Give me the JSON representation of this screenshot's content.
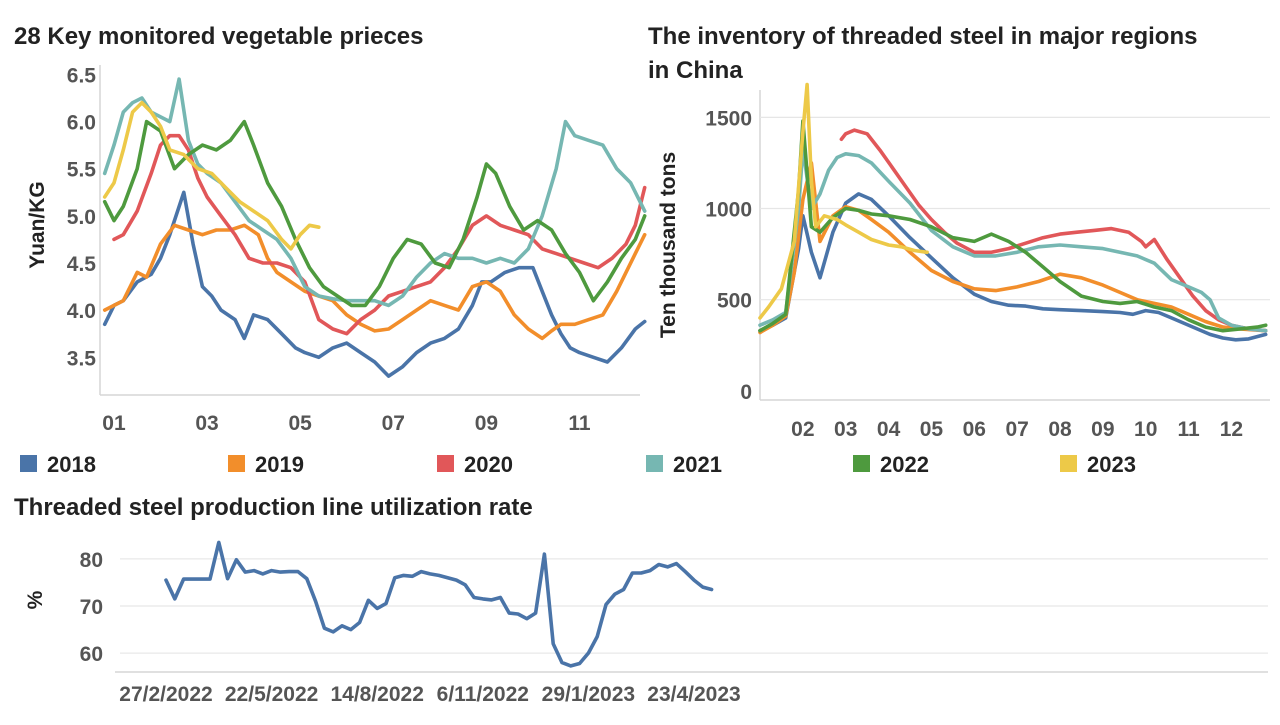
{
  "legend": [
    {
      "name": "2018",
      "color": "#4a74a8"
    },
    {
      "name": "2019",
      "color": "#f28e2b"
    },
    {
      "name": "2020",
      "color": "#e15759"
    },
    {
      "name": "2021",
      "color": "#76b7b2"
    },
    {
      "name": "2022",
      "color": "#4e9a3e"
    },
    {
      "name": "2023",
      "color": "#edc948"
    }
  ],
  "chart_data": [
    {
      "type": "line",
      "title": "28 Key monitored vegetable prieces",
      "ylabel": "Yuan/KG",
      "xlabel": "",
      "ylim": [
        3.1,
        6.6
      ],
      "xlim": [
        0.7,
        12.3
      ],
      "xtick_values": [
        1,
        3,
        5,
        7,
        9,
        11
      ],
      "xtick_labels": [
        "01",
        "03",
        "05",
        "07",
        "09",
        "11"
      ],
      "ytick_values": [
        3.5,
        4.0,
        4.5,
        5.0,
        5.5,
        6.0,
        6.5
      ],
      "ytick_labels": [
        "3.5",
        "4.0",
        "4.5",
        "5.0",
        "5.5",
        "6.0",
        "6.5"
      ],
      "grid": false,
      "series": [
        {
          "name": "2018",
          "x": [
            0.8,
            1.0,
            1.2,
            1.5,
            1.8,
            2.0,
            2.2,
            2.5,
            2.7,
            2.9,
            3.1,
            3.3,
            3.6,
            3.8,
            4.0,
            4.3,
            4.6,
            4.9,
            5.1,
            5.4,
            5.7,
            6.0,
            6.3,
            6.6,
            6.9,
            7.2,
            7.5,
            7.8,
            8.1,
            8.4,
            8.7,
            8.9,
            9.1,
            9.4,
            9.7,
            10.0,
            10.2,
            10.4,
            10.6,
            10.8,
            11.0,
            11.3,
            11.6,
            11.9,
            12.2,
            12.4
          ],
          "y": [
            3.85,
            4.05,
            4.1,
            4.3,
            4.38,
            4.55,
            4.8,
            5.25,
            4.7,
            4.25,
            4.15,
            4.0,
            3.9,
            3.7,
            3.95,
            3.9,
            3.75,
            3.6,
            3.55,
            3.5,
            3.6,
            3.65,
            3.55,
            3.45,
            3.3,
            3.4,
            3.55,
            3.65,
            3.7,
            3.8,
            4.05,
            4.3,
            4.3,
            4.4,
            4.45,
            4.45,
            4.2,
            3.95,
            3.75,
            3.6,
            3.55,
            3.5,
            3.45,
            3.6,
            3.8,
            3.88
          ]
        },
        {
          "name": "2019",
          "x": [
            0.8,
            1.0,
            1.2,
            1.5,
            1.7,
            2.0,
            2.3,
            2.6,
            2.9,
            3.2,
            3.5,
            3.8,
            4.1,
            4.3,
            4.5,
            4.8,
            5.1,
            5.4,
            5.7,
            6.0,
            6.3,
            6.6,
            6.9,
            7.2,
            7.5,
            7.8,
            8.1,
            8.4,
            8.7,
            9.0,
            9.3,
            9.6,
            9.9,
            10.2,
            10.4,
            10.6,
            10.9,
            11.2,
            11.5,
            11.8,
            12.0,
            12.2,
            12.4
          ],
          "y": [
            4.0,
            4.05,
            4.1,
            4.4,
            4.35,
            4.7,
            4.9,
            4.85,
            4.8,
            4.85,
            4.85,
            4.9,
            4.8,
            4.55,
            4.4,
            4.3,
            4.2,
            4.15,
            4.1,
            3.95,
            3.85,
            3.78,
            3.8,
            3.9,
            4.0,
            4.1,
            4.05,
            4.0,
            4.25,
            4.3,
            4.2,
            3.95,
            3.8,
            3.7,
            3.78,
            3.85,
            3.85,
            3.9,
            3.95,
            4.2,
            4.4,
            4.6,
            4.8
          ]
        },
        {
          "name": "2020",
          "x": [
            1.0,
            1.2,
            1.5,
            1.8,
            2.0,
            2.2,
            2.4,
            2.6,
            2.8,
            3.0,
            3.3,
            3.6,
            3.9,
            4.2,
            4.5,
            4.8,
            5.1,
            5.4,
            5.7,
            6.0,
            6.3,
            6.6,
            6.9,
            7.2,
            7.5,
            7.8,
            8.1,
            8.4,
            8.7,
            9.0,
            9.3,
            9.6,
            9.9,
            10.2,
            10.5,
            10.8,
            11.1,
            11.4,
            11.7,
            12.0,
            12.2,
            12.4
          ],
          "y": [
            4.75,
            4.8,
            5.05,
            5.45,
            5.75,
            5.85,
            5.85,
            5.7,
            5.4,
            5.2,
            5.0,
            4.8,
            4.55,
            4.5,
            4.5,
            4.45,
            4.3,
            3.9,
            3.8,
            3.75,
            3.9,
            4.0,
            4.15,
            4.2,
            4.25,
            4.3,
            4.45,
            4.65,
            4.9,
            5.0,
            4.9,
            4.85,
            4.8,
            4.65,
            4.6,
            4.55,
            4.5,
            4.45,
            4.55,
            4.7,
            4.9,
            5.3
          ]
        },
        {
          "name": "2021",
          "x": [
            0.8,
            1.0,
            1.2,
            1.4,
            1.6,
            1.8,
            2.0,
            2.2,
            2.4,
            2.6,
            2.8,
            3.0,
            3.3,
            3.6,
            3.9,
            4.2,
            4.5,
            4.8,
            5.1,
            5.4,
            5.7,
            6.0,
            6.3,
            6.6,
            6.9,
            7.2,
            7.5,
            7.8,
            8.1,
            8.4,
            8.7,
            9.0,
            9.3,
            9.6,
            9.9,
            10.2,
            10.5,
            10.7,
            10.9,
            11.2,
            11.5,
            11.8,
            12.1,
            12.4
          ],
          "y": [
            5.45,
            5.75,
            6.1,
            6.2,
            6.25,
            6.1,
            6.05,
            6.0,
            6.45,
            5.8,
            5.55,
            5.45,
            5.35,
            5.15,
            4.95,
            4.85,
            4.75,
            4.55,
            4.25,
            4.15,
            4.12,
            4.1,
            4.1,
            4.1,
            4.05,
            4.15,
            4.35,
            4.5,
            4.6,
            4.55,
            4.55,
            4.5,
            4.55,
            4.5,
            4.65,
            5.0,
            5.5,
            6.0,
            5.85,
            5.8,
            5.75,
            5.5,
            5.35,
            5.05
          ]
        },
        {
          "name": "2022",
          "x": [
            0.8,
            1.0,
            1.2,
            1.5,
            1.7,
            2.0,
            2.3,
            2.6,
            2.9,
            3.2,
            3.5,
            3.8,
            4.0,
            4.3,
            4.6,
            4.9,
            5.2,
            5.5,
            5.8,
            6.1,
            6.4,
            6.7,
            7.0,
            7.3,
            7.6,
            7.9,
            8.2,
            8.5,
            8.8,
            9.0,
            9.2,
            9.5,
            9.8,
            10.1,
            10.4,
            10.7,
            11.0,
            11.3,
            11.6,
            11.9,
            12.2,
            12.4
          ],
          "y": [
            5.15,
            4.95,
            5.1,
            5.5,
            6.0,
            5.9,
            5.5,
            5.65,
            5.75,
            5.7,
            5.8,
            6.0,
            5.75,
            5.35,
            5.1,
            4.75,
            4.45,
            4.25,
            4.15,
            4.05,
            4.05,
            4.25,
            4.55,
            4.75,
            4.7,
            4.5,
            4.45,
            4.75,
            5.2,
            5.55,
            5.45,
            5.1,
            4.85,
            4.95,
            4.85,
            4.6,
            4.4,
            4.1,
            4.3,
            4.55,
            4.75,
            5.0
          ]
        },
        {
          "name": "2023",
          "x": [
            0.8,
            1.0,
            1.2,
            1.4,
            1.6,
            1.8,
            2.0,
            2.2,
            2.5,
            2.8,
            3.1,
            3.4,
            3.7,
            4.0,
            4.3,
            4.6,
            4.8,
            5.0,
            5.2,
            5.4
          ],
          "y": [
            5.2,
            5.35,
            5.7,
            6.1,
            6.2,
            6.1,
            5.95,
            5.7,
            5.65,
            5.5,
            5.45,
            5.3,
            5.15,
            5.05,
            4.95,
            4.75,
            4.65,
            4.8,
            4.9,
            4.88
          ]
        }
      ]
    },
    {
      "type": "line",
      "title": "The inventory of threaded steel in major regions in China",
      "ylabel": "Ten thousand tons",
      "xlabel": "",
      "ylim": [
        -50,
        1650
      ],
      "xlim": [
        1.0,
        12.9
      ],
      "xtick_values": [
        2,
        3,
        4,
        5,
        6,
        7,
        8,
        9,
        10,
        11,
        12
      ],
      "xtick_labels": [
        "02",
        "03",
        "04",
        "05",
        "06",
        "07",
        "08",
        "09",
        "10",
        "11",
        "12"
      ],
      "ytick_values": [
        0,
        500,
        1000,
        1500
      ],
      "ytick_labels": [
        "0",
        "500",
        "1000",
        "1500"
      ],
      "grid": true,
      "series": [
        {
          "name": "2018",
          "x": [
            1.0,
            1.3,
            1.6,
            1.9,
            2.0,
            2.2,
            2.4,
            2.7,
            3.0,
            3.3,
            3.6,
            4.0,
            4.5,
            5.0,
            5.5,
            6.0,
            6.4,
            6.8,
            7.2,
            7.6,
            8.0,
            8.5,
            9.0,
            9.4,
            9.7,
            10.0,
            10.3,
            10.6,
            10.9,
            11.2,
            11.5,
            11.8,
            12.1,
            12.4,
            12.8
          ],
          "y": [
            330,
            360,
            400,
            780,
            960,
            760,
            620,
            870,
            1030,
            1080,
            1050,
            960,
            840,
            730,
            620,
            530,
            490,
            470,
            465,
            450,
            445,
            440,
            435,
            430,
            420,
            440,
            430,
            400,
            370,
            340,
            310,
            290,
            280,
            285,
            310
          ]
        },
        {
          "name": "2019",
          "x": [
            1.0,
            1.3,
            1.6,
            1.8,
            2.0,
            2.2,
            2.4,
            2.7,
            3.0,
            3.3,
            3.6,
            4.0,
            4.5,
            5.0,
            5.5,
            6.0,
            6.5,
            7.0,
            7.5,
            8.0,
            8.5,
            9.0,
            9.4,
            9.8,
            10.2,
            10.6,
            11.0,
            11.4,
            11.8,
            12.2,
            12.8
          ],
          "y": [
            320,
            360,
            410,
            650,
            1050,
            1250,
            820,
            960,
            1010,
            990,
            940,
            870,
            760,
            660,
            600,
            560,
            550,
            570,
            600,
            640,
            620,
            580,
            540,
            500,
            480,
            460,
            420,
            380,
            350,
            340,
            330
          ]
        },
        {
          "name": "2020",
          "x": [
            2.9,
            3.0,
            3.2,
            3.5,
            3.8,
            4.1,
            4.4,
            4.7,
            5.0,
            5.3,
            5.6,
            6.0,
            6.4,
            6.8,
            7.2,
            7.6,
            8.0,
            8.4,
            8.8,
            9.2,
            9.6,
            9.9,
            10.0,
            10.2,
            10.5,
            10.8,
            11.1,
            11.4,
            11.7,
            12.0,
            12.4,
            12.8
          ],
          "y": [
            1380,
            1410,
            1430,
            1410,
            1320,
            1220,
            1120,
            1020,
            940,
            870,
            810,
            760,
            760,
            780,
            810,
            840,
            860,
            870,
            880,
            890,
            870,
            820,
            790,
            830,
            720,
            620,
            520,
            440,
            390,
            360,
            340,
            330
          ]
        },
        {
          "name": "2021",
          "x": [
            1.0,
            1.3,
            1.6,
            1.9,
            2.0,
            2.2,
            2.4,
            2.6,
            2.8,
            3.0,
            3.3,
            3.6,
            4.0,
            4.5,
            5.0,
            5.5,
            6.0,
            6.5,
            7.0,
            7.5,
            8.0,
            8.5,
            9.0,
            9.4,
            9.8,
            10.2,
            10.6,
            11.0,
            11.3,
            11.5,
            11.7,
            12.0,
            12.4,
            12.8
          ],
          "y": [
            360,
            390,
            430,
            1000,
            1330,
            1000,
            1080,
            1210,
            1280,
            1300,
            1290,
            1250,
            1150,
            1030,
            880,
            790,
            740,
            740,
            760,
            790,
            800,
            790,
            780,
            760,
            740,
            700,
            610,
            570,
            540,
            500,
            400,
            360,
            340,
            330
          ]
        },
        {
          "name": "2022",
          "x": [
            1.0,
            1.3,
            1.6,
            1.9,
            2.0,
            2.2,
            2.4,
            2.7,
            3.0,
            3.3,
            3.6,
            4.0,
            4.5,
            5.0,
            5.5,
            6.0,
            6.4,
            6.8,
            7.2,
            7.6,
            8.0,
            8.5,
            9.0,
            9.4,
            9.8,
            10.2,
            10.6,
            11.0,
            11.4,
            11.8,
            12.2,
            12.6,
            12.8
          ],
          "y": [
            330,
            370,
            420,
            1100,
            1480,
            900,
            870,
            950,
            1000,
            990,
            970,
            960,
            940,
            900,
            840,
            820,
            860,
            820,
            760,
            680,
            600,
            520,
            490,
            480,
            490,
            460,
            440,
            390,
            350,
            330,
            340,
            350,
            360
          ]
        },
        {
          "name": "2023",
          "x": [
            1.0,
            1.2,
            1.5,
            1.8,
            2.0,
            2.1,
            2.2,
            2.3,
            2.5,
            2.8,
            3.0,
            3.3,
            3.6,
            4.0,
            4.3,
            4.6,
            4.9
          ],
          "y": [
            400,
            460,
            560,
            820,
            1420,
            1680,
            1150,
            900,
            960,
            940,
            910,
            870,
            830,
            800,
            790,
            770,
            760
          ]
        }
      ]
    },
    {
      "type": "line",
      "title": "Threaded steel production line utilization rate",
      "ylabel": "%",
      "xlabel": "",
      "ylim": [
        56,
        84
      ],
      "ytick_values": [
        60,
        70,
        80
      ],
      "ytick_labels": [
        "60",
        "70",
        "80"
      ],
      "xtick_index": [
        0,
        12,
        24,
        36,
        48,
        60
      ],
      "x_labels": [
        "27/2/2022",
        "22/5/2022",
        "14/8/2022",
        "6/11/2022",
        "29/1/2023",
        "23/4/2023"
      ],
      "grid": true,
      "series": [
        {
          "name": "",
          "values": [
            75.5,
            71.5,
            75.7,
            75.7,
            75.7,
            75.7,
            83.5,
            75.8,
            79.8,
            77.2,
            77.5,
            76.8,
            77.5,
            77.2,
            77.3,
            77.3,
            75.8,
            71.0,
            65.3,
            64.5,
            65.8,
            65.0,
            66.5,
            71.2,
            69.5,
            70.5,
            76.0,
            76.5,
            76.3,
            77.3,
            76.8,
            76.5,
            76.0,
            75.5,
            74.5,
            71.8,
            71.5,
            71.3,
            71.8,
            68.5,
            68.3,
            67.3,
            68.5,
            81.0,
            62.0,
            58.0,
            57.3,
            57.8,
            60.0,
            63.5,
            70.3,
            72.5,
            73.5,
            77.0,
            77.0,
            77.5,
            78.8,
            78.3,
            79.0,
            77.3,
            75.5,
            74.0,
            73.5
          ]
        }
      ]
    }
  ]
}
